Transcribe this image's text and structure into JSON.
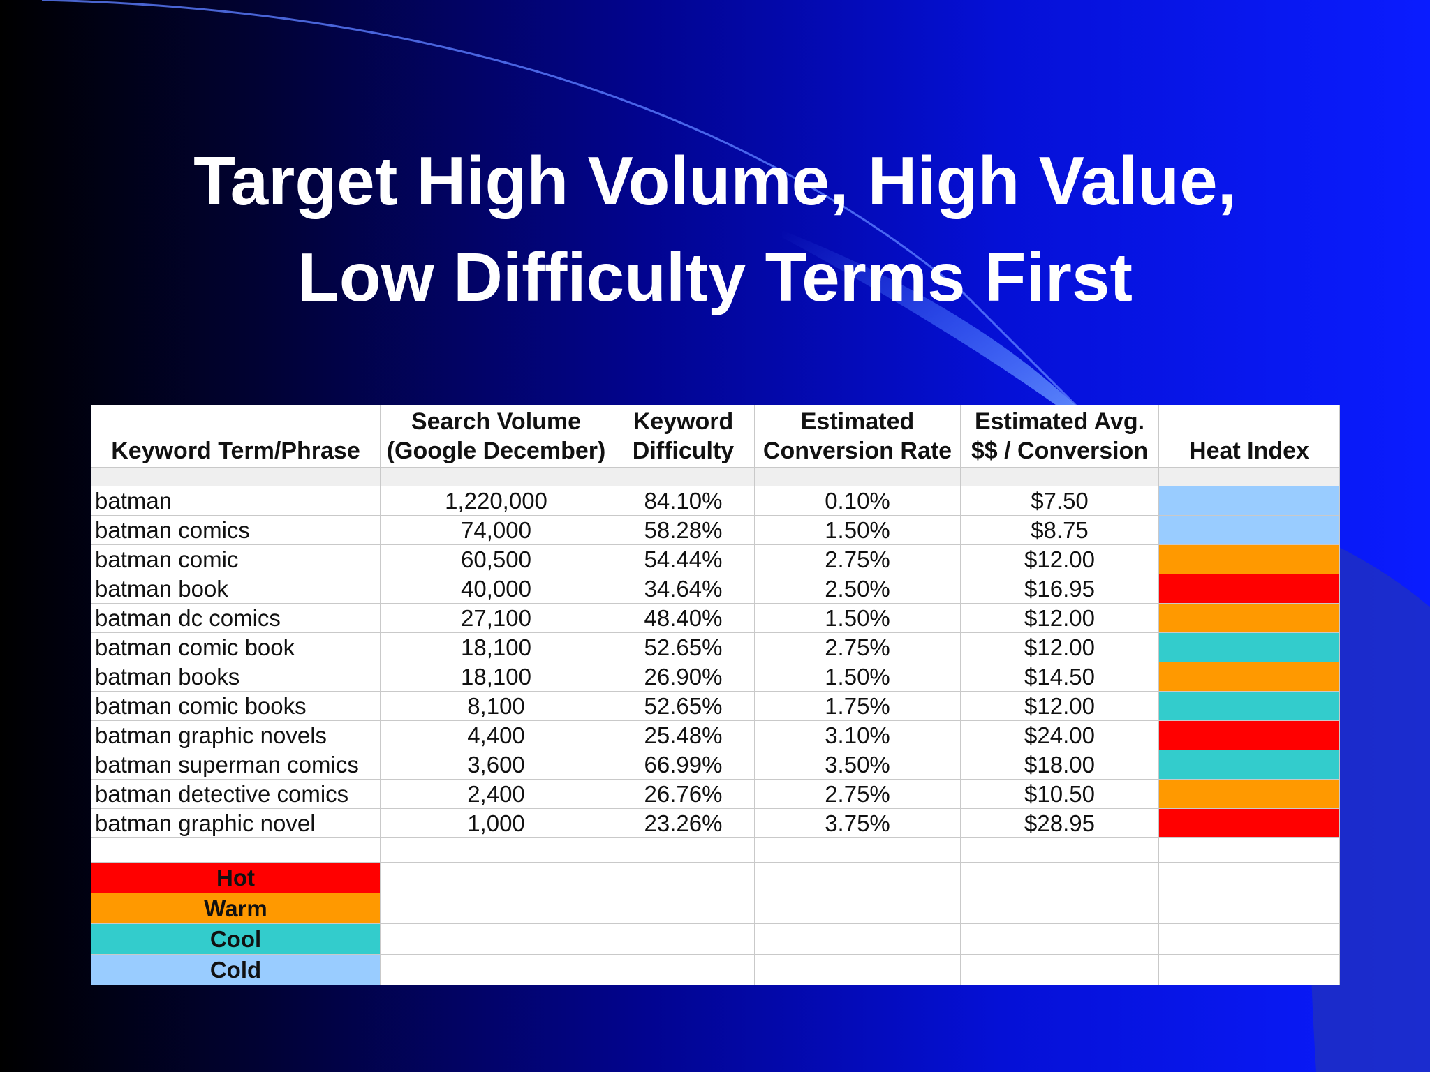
{
  "title": {
    "line1": "Target High Volume, High Value,",
    "line2": "Low Difficulty Terms First"
  },
  "colors": {
    "hot": "#ff0000",
    "warm": "#ff9900",
    "cool": "#33cccc",
    "cold": "#99ccff"
  },
  "table": {
    "headers": {
      "keyword": "Keyword Term/Phrase",
      "volume_line1": "Search Volume",
      "volume_line2": "(Google December)",
      "difficulty_line1": "Keyword",
      "difficulty_line2": "Difficulty",
      "conversion_line1": "Estimated",
      "conversion_line2": "Conversion Rate",
      "avg_line1": "Estimated Avg.",
      "avg_line2": "$$ / Conversion",
      "heat": "Heat Index"
    },
    "rows": [
      {
        "keyword": "batman",
        "volume": "1,220,000",
        "difficulty": "84.10%",
        "conversion": "0.10%",
        "avg": "$7.50",
        "heat": "cold"
      },
      {
        "keyword": "batman comics",
        "volume": "74,000",
        "difficulty": "58.28%",
        "conversion": "1.50%",
        "avg": "$8.75",
        "heat": "cold"
      },
      {
        "keyword": "batman comic",
        "volume": "60,500",
        "difficulty": "54.44%",
        "conversion": "2.75%",
        "avg": "$12.00",
        "heat": "warm"
      },
      {
        "keyword": "batman book",
        "volume": "40,000",
        "difficulty": "34.64%",
        "conversion": "2.50%",
        "avg": "$16.95",
        "heat": "hot"
      },
      {
        "keyword": "batman dc comics",
        "volume": "27,100",
        "difficulty": "48.40%",
        "conversion": "1.50%",
        "avg": "$12.00",
        "heat": "warm"
      },
      {
        "keyword": "batman comic book",
        "volume": "18,100",
        "difficulty": "52.65%",
        "conversion": "2.75%",
        "avg": "$12.00",
        "heat": "cool"
      },
      {
        "keyword": "batman books",
        "volume": "18,100",
        "difficulty": "26.90%",
        "conversion": "1.50%",
        "avg": "$14.50",
        "heat": "warm"
      },
      {
        "keyword": "batman comic books",
        "volume": "8,100",
        "difficulty": "52.65%",
        "conversion": "1.75%",
        "avg": "$12.00",
        "heat": "cool"
      },
      {
        "keyword": "batman graphic novels",
        "volume": "4,400",
        "difficulty": "25.48%",
        "conversion": "3.10%",
        "avg": "$24.00",
        "heat": "hot"
      },
      {
        "keyword": "batman superman comics",
        "volume": "3,600",
        "difficulty": "66.99%",
        "conversion": "3.50%",
        "avg": "$18.00",
        "heat": "cool"
      },
      {
        "keyword": "batman detective comics",
        "volume": "2,400",
        "difficulty": "26.76%",
        "conversion": "2.75%",
        "avg": "$10.50",
        "heat": "warm"
      },
      {
        "keyword": "batman graphic novel",
        "volume": "1,000",
        "difficulty": "23.26%",
        "conversion": "3.75%",
        "avg": "$28.95",
        "heat": "hot"
      }
    ]
  },
  "legend": [
    {
      "label": "Hot",
      "heat": "hot"
    },
    {
      "label": "Warm",
      "heat": "warm"
    },
    {
      "label": "Cool",
      "heat": "cool"
    },
    {
      "label": "Cold",
      "heat": "cold"
    }
  ]
}
